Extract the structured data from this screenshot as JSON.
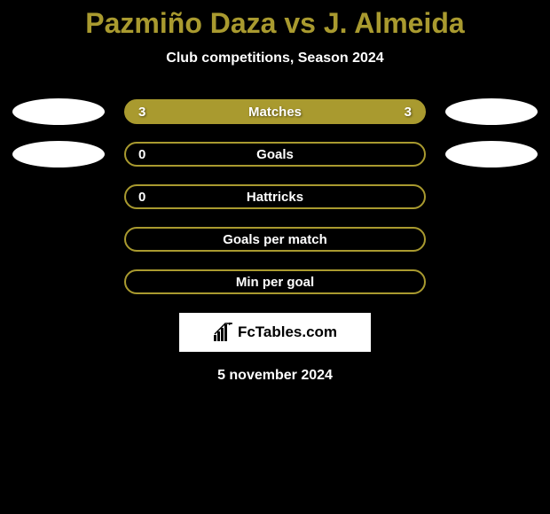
{
  "header": {
    "title": "Pazmiño Daza vs J. Almeida",
    "subtitle": "Club competitions, Season 2024",
    "title_color": "#a99a2f",
    "subtitle_color": "#ffffff",
    "title_fontsize": 32,
    "subtitle_fontsize": 16
  },
  "background_color": "#000000",
  "stats": [
    {
      "label": "Matches",
      "left_value": "3",
      "right_value": "3",
      "fill_color": "#a99a2f",
      "border_color": "#a99a2f",
      "text_color": "#ffffff",
      "has_fill": true,
      "left_ellipse_color": "#ffffff",
      "right_ellipse_color": "#ffffff",
      "show_ellipses": true
    },
    {
      "label": "Goals",
      "left_value": "0",
      "right_value": "",
      "fill_color": "transparent",
      "border_color": "#a99a2f",
      "text_color": "#ffffff",
      "has_fill": false,
      "left_ellipse_color": "#ffffff",
      "right_ellipse_color": "#ffffff",
      "show_ellipses": true
    },
    {
      "label": "Hattricks",
      "left_value": "0",
      "right_value": "",
      "fill_color": "transparent",
      "border_color": "#a99a2f",
      "text_color": "#ffffff",
      "has_fill": false,
      "show_ellipses": false
    },
    {
      "label": "Goals per match",
      "left_value": "",
      "right_value": "",
      "fill_color": "transparent",
      "border_color": "#a99a2f",
      "text_color": "#ffffff",
      "has_fill": false,
      "show_ellipses": false
    },
    {
      "label": "Min per goal",
      "left_value": "",
      "right_value": "",
      "fill_color": "transparent",
      "border_color": "#a99a2f",
      "text_color": "#ffffff",
      "has_fill": false,
      "show_ellipses": false
    }
  ],
  "branding": {
    "text": "FcTables.com",
    "background_color": "#ffffff",
    "text_color": "#000000"
  },
  "footer": {
    "date": "5 november 2024",
    "text_color": "#ffffff"
  }
}
